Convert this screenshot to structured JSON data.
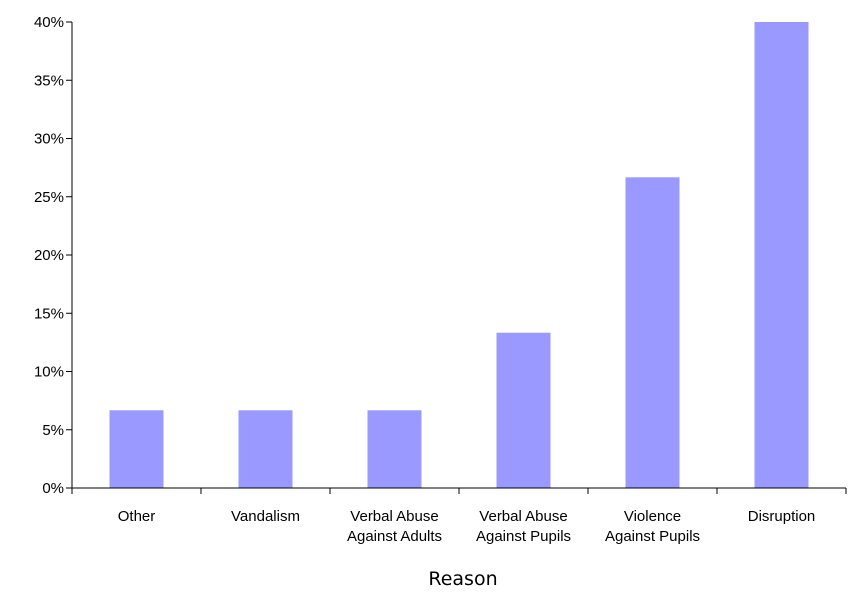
{
  "chart_data": {
    "type": "bar",
    "title": "",
    "xlabel": "Reason",
    "ylabel": "",
    "categories": [
      [
        "Other"
      ],
      [
        "Vandalism"
      ],
      [
        "Verbal Abuse",
        "Against Adults"
      ],
      [
        "Verbal Abuse",
        "Against Pupils"
      ],
      [
        "Violence",
        "Against Pupils"
      ],
      [
        "Disruption"
      ]
    ],
    "values": [
      6.67,
      6.67,
      6.67,
      13.33,
      26.67,
      40.0
    ],
    "ylim": [
      0,
      40
    ],
    "yticks": [
      "0%",
      "5%",
      "10%",
      "15%",
      "20%",
      "25%",
      "30%",
      "35%",
      "40%"
    ],
    "grid": false,
    "legend": "none",
    "bar_color": "#9999ff",
    "axis_color": "#000000"
  }
}
